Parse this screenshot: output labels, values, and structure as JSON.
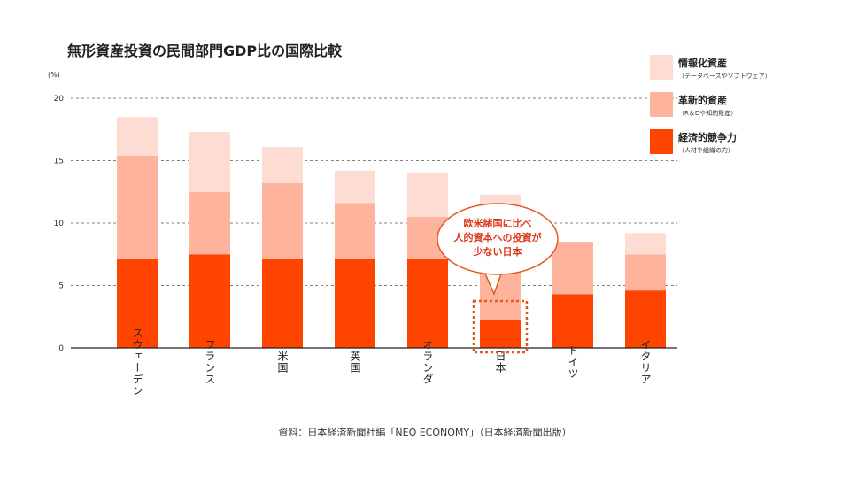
{
  "chart_data": {
    "type": "bar",
    "stacked": true,
    "title": "無形資産投資の民間部門GDP比の国際比較",
    "unit": "(%)",
    "categories": [
      "スウェーデン",
      "フランス",
      "米国",
      "英国",
      "オランダ",
      "日本",
      "ドイツ",
      "イタリア"
    ],
    "series": [
      {
        "name": "経済的競争力",
        "sub": "（人材や組織の力）",
        "color": "#ff4400",
        "values": [
          7.1,
          7.5,
          7.1,
          7.1,
          7.1,
          2.2,
          4.3,
          4.6
        ]
      },
      {
        "name": "革新的資産",
        "sub": "（R＆Dや知的財産）",
        "color": "#fdb39c",
        "values": [
          8.3,
          5.0,
          6.1,
          4.5,
          3.4,
          5.8,
          4.2,
          2.9
        ]
      },
      {
        "name": "情報化資産",
        "sub": "（データベースやソフトウェア）",
        "color": "#fddcd3",
        "values": [
          3.1,
          4.8,
          2.9,
          2.6,
          3.5,
          4.3,
          0,
          1.7
        ]
      }
    ],
    "ylim": [
      0,
      20
    ],
    "yticks": [
      0,
      5,
      10,
      15,
      20
    ],
    "grid": "dashed",
    "legend": "top-right",
    "annotation": {
      "category": "日本",
      "lines": [
        "欧米諸国に比べ",
        "人的資本への投資が",
        "少ない日本"
      ]
    },
    "source": "資料：日本経済新聞社編「NEO ECONOMY」（日本経済新聞出版）"
  },
  "colors": {
    "axis": "#222222",
    "grid": "#555555",
    "accent": "#e8541f",
    "callout_text": "#e0361c"
  }
}
